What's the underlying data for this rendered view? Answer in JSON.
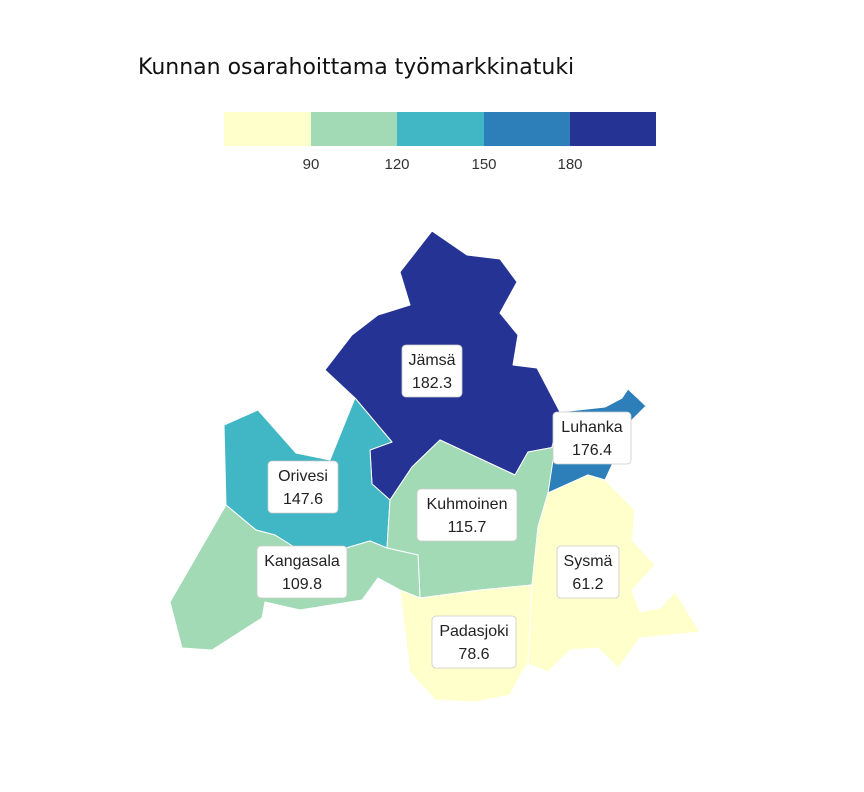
{
  "title": "Kunnan osarahoittama työmarkkinatuki",
  "legend": {
    "colors": [
      "#ffffcc",
      "#a1dab4",
      "#41b6c4",
      "#2c7fb8",
      "#253494"
    ],
    "ticks": [
      "90",
      "120",
      "150",
      "180"
    ]
  },
  "regions": [
    {
      "name": "Jämsä",
      "value": "182.3",
      "color": "#253494"
    },
    {
      "name": "Luhanka",
      "value": "176.4",
      "color": "#2c7fb8"
    },
    {
      "name": "Orivesi",
      "value": "147.6",
      "color": "#41b6c4"
    },
    {
      "name": "Kuhmoinen",
      "value": "115.7",
      "color": "#a1dab4"
    },
    {
      "name": "Kangasala",
      "value": "109.8",
      "color": "#a1dab4"
    },
    {
      "name": "Sysmä",
      "value": "61.2",
      "color": "#ffffcc"
    },
    {
      "name": "Padasjoki",
      "value": "78.6",
      "color": "#ffffcc"
    }
  ]
}
